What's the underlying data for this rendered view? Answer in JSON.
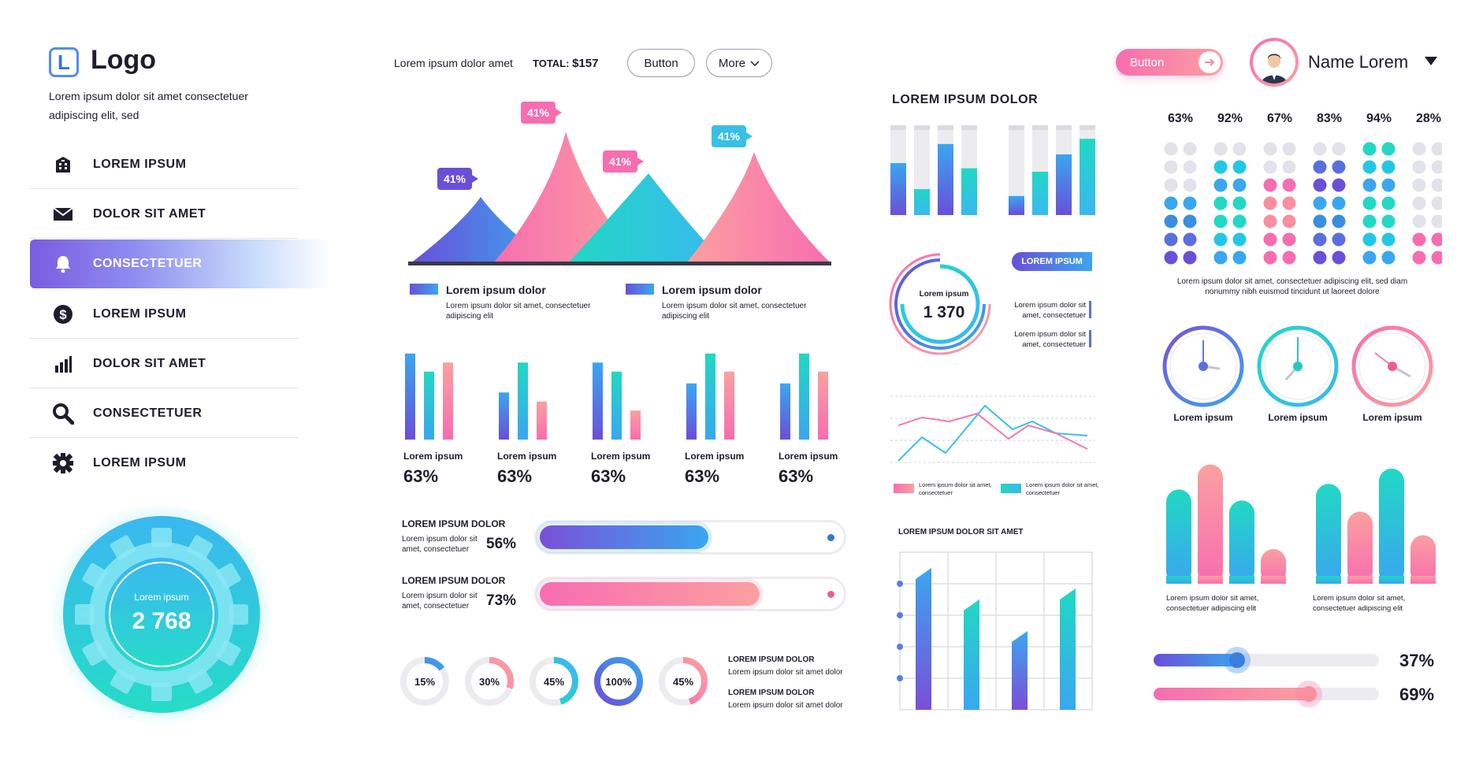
{
  "sidebar": {
    "logo_letter": "L",
    "logo_text": "Logo",
    "description": "Lorem ipsum dolor sit amet consectetuer adipiscing elit, sed",
    "items": [
      {
        "label": "LOREM IPSUM",
        "icon": "building-icon"
      },
      {
        "label": "DOLOR SIT AMET",
        "icon": "envelope-icon"
      },
      {
        "label": "CONSECTETUER",
        "icon": "bell-icon",
        "active": true
      },
      {
        "label": "LOREM IPSUM",
        "icon": "dollar-icon"
      },
      {
        "label": "DOLOR SIT AMET",
        "icon": "bar-chart-icon"
      },
      {
        "label": "CONSECTETUER",
        "icon": "search-icon"
      },
      {
        "label": "LOREM IPSUM",
        "icon": "gear-icon"
      }
    ],
    "gear_widget": {
      "label": "Lorem ipsum",
      "value": "2 768"
    }
  },
  "header": {
    "text": "Lorem ipsum dolor amet",
    "total_label": "TOTAL:",
    "total_value": "$157",
    "button_label": "Button",
    "more_label": "More",
    "pill_button_label": "Button",
    "user_name": "Name Lorem"
  },
  "peaks": {
    "tags": [
      "41%",
      "41%",
      "41%",
      "41%"
    ],
    "legend": [
      {
        "title": "Lorem ipsum dolor",
        "desc": "Lorem ipsum dolor sit amet, consectetuer adipiscing elit"
      },
      {
        "title": "Lorem ipsum dolor",
        "desc": "Lorem ipsum dolor sit amet, consectetuer adipiscing elit"
      }
    ]
  },
  "bar_groups": [
    {
      "label": "Lorem ipsum",
      "pct": "63%",
      "values": [
        95,
        75,
        85
      ]
    },
    {
      "label": "Lorem ipsum",
      "pct": "63%",
      "values": [
        52,
        85,
        42
      ]
    },
    {
      "label": "Lorem ipsum",
      "pct": "63%",
      "values": [
        85,
        75,
        32
      ]
    },
    {
      "label": "Lorem ipsum",
      "pct": "63%",
      "values": [
        62,
        95,
        75
      ]
    },
    {
      "label": "Lorem ipsum",
      "pct": "63%",
      "values": [
        62,
        95,
        75
      ]
    }
  ],
  "progress": [
    {
      "title": "LOREM IPSUM DOLOR",
      "desc": "Lorem ipsum dolor sit amet, consectetuer",
      "pct": "56%",
      "value": 0.56
    },
    {
      "title": "LOREM IPSUM DOLOR",
      "desc": "Lorem ipsum dolor sit amet, consectetuer",
      "pct": "73%",
      "value": 0.73
    }
  ],
  "donuts": [
    {
      "label": "15%",
      "value": 0.15
    },
    {
      "label": "30%",
      "value": 0.3
    },
    {
      "label": "45%",
      "value": 0.45
    },
    {
      "label": "100%",
      "value": 1.0
    },
    {
      "label": "45%",
      "value": 0.45
    }
  ],
  "donut_notes": [
    {
      "title": "LOREM IPSUM DOLOR",
      "desc": "Lorem ipsum dolor sit amet dolor"
    },
    {
      "title": "LOREM IPSUM DOLOR",
      "desc": "Lorem ipsum dolor sit amet dolor"
    }
  ],
  "stack_section": {
    "title": "LOREM IPSUM DOLOR",
    "bars": [
      0.6,
      0.3,
      0.82,
      0.54,
      0.22,
      0.5,
      0.7,
      0.88
    ]
  },
  "rings": {
    "label": "Lorem ipsum",
    "value": "1 370",
    "badge": "LOREM IPSUM",
    "notes": [
      "Lorem ipsum dolor sit amet, consectetuer",
      "Lorem ipsum dolor sit amet, consectetuer"
    ]
  },
  "line_chart": {
    "legend": [
      "Lorem ipsum dolor sit amet, consectetuer",
      "Lorem ipsum dolor sit amet, consectetuer"
    ]
  },
  "column_chart": {
    "title": "LOREM IPSUM DOLOR SIT AMET",
    "values": [
      0.9,
      0.7,
      0.5,
      0.77
    ]
  },
  "dot_matrix": {
    "columns": [
      {
        "pct": "63%",
        "value": 0.63
      },
      {
        "pct": "92%",
        "value": 0.92
      },
      {
        "pct": "67%",
        "value": 0.67
      },
      {
        "pct": "83%",
        "value": 0.83
      },
      {
        "pct": "94%",
        "value": 0.94
      },
      {
        "pct": "28%",
        "value": 0.28
      }
    ],
    "caption": "Lorem ipsum dolor sit amet, consectetuer adipiscing elit, sed diam nonummy nibh euismod tincidunt ut laoreet dolore"
  },
  "clocks": [
    "Lorem ipsum",
    "Lorem ipsum",
    "Lorem ipsum"
  ],
  "big_bars": [
    {
      "values": [
        0.68,
        0.86,
        0.6,
        0.25
      ],
      "caption": "Lorem ipsum dolor sit amet, consectetuer adipiscing elit"
    },
    {
      "values": [
        0.72,
        0.52,
        0.83,
        0.35
      ],
      "caption": "Lorem ipsum dolor sit amet, consectetuer adipiscing elit"
    }
  ],
  "sliders": [
    {
      "pct": "37%",
      "value": 0.37
    },
    {
      "pct": "69%",
      "value": 0.69
    }
  ],
  "colors": {
    "purple": "#7a4fd8",
    "blue": "#3aa6f0",
    "teal": "#21d8c4",
    "pink": "#f76db0",
    "peach": "#fba0a0",
    "dark": "#1d1d2b"
  }
}
